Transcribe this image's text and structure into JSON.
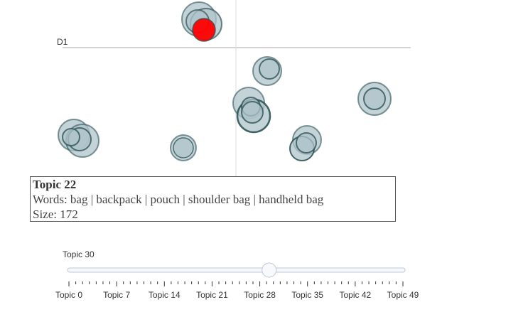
{
  "chart": {
    "axis_label": "D1",
    "colors": {
      "bubble_fill": "#b0c4cb",
      "bubble_stroke": "#2f5456",
      "selected_fill": "#ff0000",
      "axis_line": "#bbbbbb",
      "grid_line": "#dddddd"
    }
  },
  "tooltip": {
    "title": "Topic 22",
    "words": "Words: bag | backpack | pouch | shoulder bag | handheld bag",
    "size": "Size: 172"
  },
  "slider": {
    "current_label": "Topic 30",
    "value": 30,
    "min": 0,
    "max": 49,
    "tick_labels": [
      "Topic 0",
      "Topic 7",
      "Topic 14",
      "Topic 21",
      "Topic 28",
      "Topic 35",
      "Topic 42",
      "Topic 49"
    ]
  }
}
